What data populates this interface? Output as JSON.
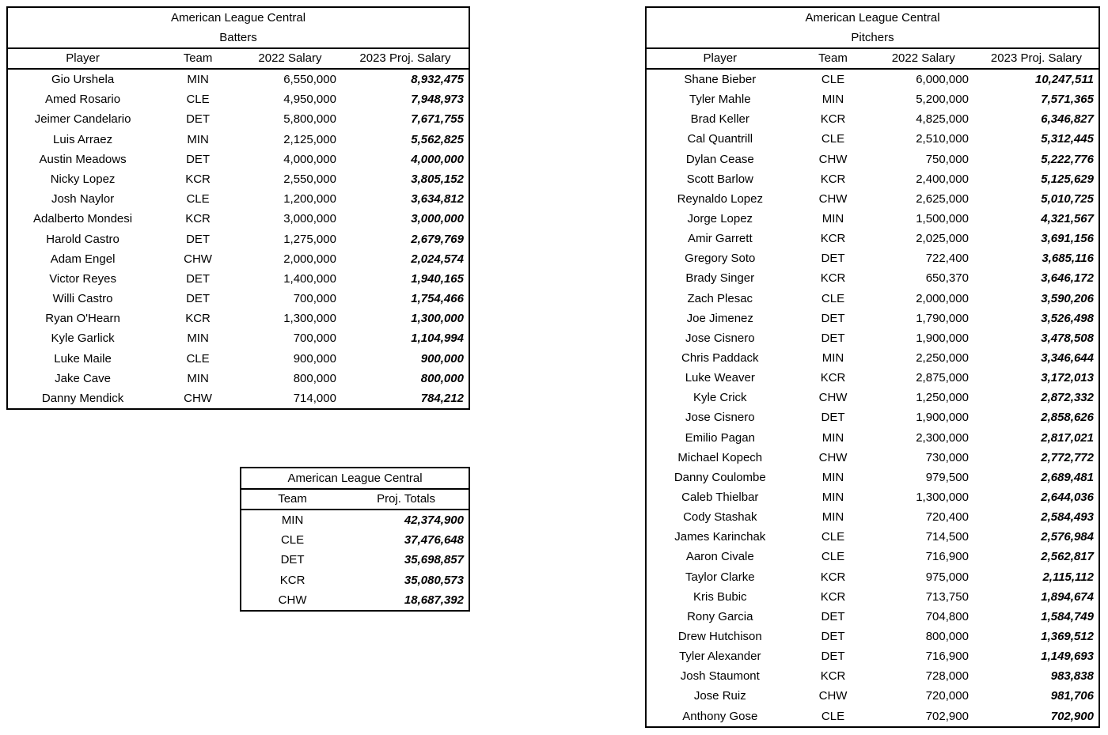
{
  "colors": {
    "background": "#ffffff",
    "border": "#000000",
    "text": "#000000"
  },
  "tables": {
    "batters": {
      "title_line1": "American League Central",
      "title_line2": "Batters",
      "columns": [
        "Player",
        "Team",
        "2022 Salary",
        "2023 Proj. Salary"
      ],
      "rows": [
        {
          "player": "Gio Urshela",
          "team": "MIN",
          "salary_2022": "6,550,000",
          "proj_2023": "8,932,475"
        },
        {
          "player": "Amed Rosario",
          "team": "CLE",
          "salary_2022": "4,950,000",
          "proj_2023": "7,948,973"
        },
        {
          "player": "Jeimer Candelario",
          "team": "DET",
          "salary_2022": "5,800,000",
          "proj_2023": "7,671,755"
        },
        {
          "player": "Luis Arraez",
          "team": "MIN",
          "salary_2022": "2,125,000",
          "proj_2023": "5,562,825"
        },
        {
          "player": "Austin Meadows",
          "team": "DET",
          "salary_2022": "4,000,000",
          "proj_2023": "4,000,000"
        },
        {
          "player": "Nicky Lopez",
          "team": "KCR",
          "salary_2022": "2,550,000",
          "proj_2023": "3,805,152"
        },
        {
          "player": "Josh Naylor",
          "team": "CLE",
          "salary_2022": "1,200,000",
          "proj_2023": "3,634,812"
        },
        {
          "player": "Adalberto Mondesi",
          "team": "KCR",
          "salary_2022": "3,000,000",
          "proj_2023": "3,000,000"
        },
        {
          "player": "Harold Castro",
          "team": "DET",
          "salary_2022": "1,275,000",
          "proj_2023": "2,679,769"
        },
        {
          "player": "Adam Engel",
          "team": "CHW",
          "salary_2022": "2,000,000",
          "proj_2023": "2,024,574"
        },
        {
          "player": "Victor Reyes",
          "team": "DET",
          "salary_2022": "1,400,000",
          "proj_2023": "1,940,165"
        },
        {
          "player": "Willi Castro",
          "team": "DET",
          "salary_2022": "700,000",
          "proj_2023": "1,754,466"
        },
        {
          "player": "Ryan O'Hearn",
          "team": "KCR",
          "salary_2022": "1,300,000",
          "proj_2023": "1,300,000"
        },
        {
          "player": "Kyle Garlick",
          "team": "MIN",
          "salary_2022": "700,000",
          "proj_2023": "1,104,994"
        },
        {
          "player": "Luke Maile",
          "team": "CLE",
          "salary_2022": "900,000",
          "proj_2023": "900,000"
        },
        {
          "player": "Jake Cave",
          "team": "MIN",
          "salary_2022": "800,000",
          "proj_2023": "800,000"
        },
        {
          "player": "Danny Mendick",
          "team": "CHW",
          "salary_2022": "714,000",
          "proj_2023": "784,212"
        }
      ]
    },
    "totals": {
      "title_line1": "American League Central",
      "columns": [
        "Team",
        "Proj. Totals"
      ],
      "rows": [
        {
          "team": "MIN",
          "proj_total": "42,374,900"
        },
        {
          "team": "CLE",
          "proj_total": "37,476,648"
        },
        {
          "team": "DET",
          "proj_total": "35,698,857"
        },
        {
          "team": "KCR",
          "proj_total": "35,080,573"
        },
        {
          "team": "CHW",
          "proj_total": "18,687,392"
        }
      ]
    },
    "pitchers": {
      "title_line1": "American League Central",
      "title_line2": "Pitchers",
      "columns": [
        "Player",
        "Team",
        "2022 Salary",
        "2023 Proj. Salary"
      ],
      "rows": [
        {
          "player": "Shane Bieber",
          "team": "CLE",
          "salary_2022": "6,000,000",
          "proj_2023": "10,247,511"
        },
        {
          "player": "Tyler Mahle",
          "team": "MIN",
          "salary_2022": "5,200,000",
          "proj_2023": "7,571,365"
        },
        {
          "player": "Brad Keller",
          "team": "KCR",
          "salary_2022": "4,825,000",
          "proj_2023": "6,346,827"
        },
        {
          "player": "Cal Quantrill",
          "team": "CLE",
          "salary_2022": "2,510,000",
          "proj_2023": "5,312,445"
        },
        {
          "player": "Dylan Cease",
          "team": "CHW",
          "salary_2022": "750,000",
          "proj_2023": "5,222,776"
        },
        {
          "player": "Scott Barlow",
          "team": "KCR",
          "salary_2022": "2,400,000",
          "proj_2023": "5,125,629"
        },
        {
          "player": "Reynaldo Lopez",
          "team": "CHW",
          "salary_2022": "2,625,000",
          "proj_2023": "5,010,725"
        },
        {
          "player": "Jorge Lopez",
          "team": "MIN",
          "salary_2022": "1,500,000",
          "proj_2023": "4,321,567"
        },
        {
          "player": "Amir Garrett",
          "team": "KCR",
          "salary_2022": "2,025,000",
          "proj_2023": "3,691,156"
        },
        {
          "player": "Gregory Soto",
          "team": "DET",
          "salary_2022": "722,400",
          "proj_2023": "3,685,116"
        },
        {
          "player": "Brady Singer",
          "team": "KCR",
          "salary_2022": "650,370",
          "proj_2023": "3,646,172"
        },
        {
          "player": "Zach Plesac",
          "team": "CLE",
          "salary_2022": "2,000,000",
          "proj_2023": "3,590,206"
        },
        {
          "player": "Joe Jimenez",
          "team": "DET",
          "salary_2022": "1,790,000",
          "proj_2023": "3,526,498"
        },
        {
          "player": "Jose Cisnero",
          "team": "DET",
          "salary_2022": "1,900,000",
          "proj_2023": "3,478,508"
        },
        {
          "player": "Chris Paddack",
          "team": "MIN",
          "salary_2022": "2,250,000",
          "proj_2023": "3,346,644"
        },
        {
          "player": "Luke Weaver",
          "team": "KCR",
          "salary_2022": "2,875,000",
          "proj_2023": "3,172,013"
        },
        {
          "player": "Kyle Crick",
          "team": "CHW",
          "salary_2022": "1,250,000",
          "proj_2023": "2,872,332"
        },
        {
          "player": "Jose Cisnero",
          "team": "DET",
          "salary_2022": "1,900,000",
          "proj_2023": "2,858,626"
        },
        {
          "player": "Emilio Pagan",
          "team": "MIN",
          "salary_2022": "2,300,000",
          "proj_2023": "2,817,021"
        },
        {
          "player": "Michael Kopech",
          "team": "CHW",
          "salary_2022": "730,000",
          "proj_2023": "2,772,772"
        },
        {
          "player": "Danny Coulombe",
          "team": "MIN",
          "salary_2022": "979,500",
          "proj_2023": "2,689,481"
        },
        {
          "player": "Caleb Thielbar",
          "team": "MIN",
          "salary_2022": "1,300,000",
          "proj_2023": "2,644,036"
        },
        {
          "player": "Cody Stashak",
          "team": "MIN",
          "salary_2022": "720,400",
          "proj_2023": "2,584,493"
        },
        {
          "player": "James Karinchak",
          "team": "CLE",
          "salary_2022": "714,500",
          "proj_2023": "2,576,984"
        },
        {
          "player": "Aaron Civale",
          "team": "CLE",
          "salary_2022": "716,900",
          "proj_2023": "2,562,817"
        },
        {
          "player": "Taylor Clarke",
          "team": "KCR",
          "salary_2022": "975,000",
          "proj_2023": "2,115,112"
        },
        {
          "player": "Kris Bubic",
          "team": "KCR",
          "salary_2022": "713,750",
          "proj_2023": "1,894,674"
        },
        {
          "player": "Rony Garcia",
          "team": "DET",
          "salary_2022": "704,800",
          "proj_2023": "1,584,749"
        },
        {
          "player": "Drew Hutchison",
          "team": "DET",
          "salary_2022": "800,000",
          "proj_2023": "1,369,512"
        },
        {
          "player": "Tyler Alexander",
          "team": "DET",
          "salary_2022": "716,900",
          "proj_2023": "1,149,693"
        },
        {
          "player": "Josh Staumont",
          "team": "KCR",
          "salary_2022": "728,000",
          "proj_2023": "983,838"
        },
        {
          "player": "Jose Ruiz",
          "team": "CHW",
          "salary_2022": "720,000",
          "proj_2023": "981,706"
        },
        {
          "player": "Anthony Gose",
          "team": "CLE",
          "salary_2022": "702,900",
          "proj_2023": "702,900"
        }
      ]
    }
  }
}
